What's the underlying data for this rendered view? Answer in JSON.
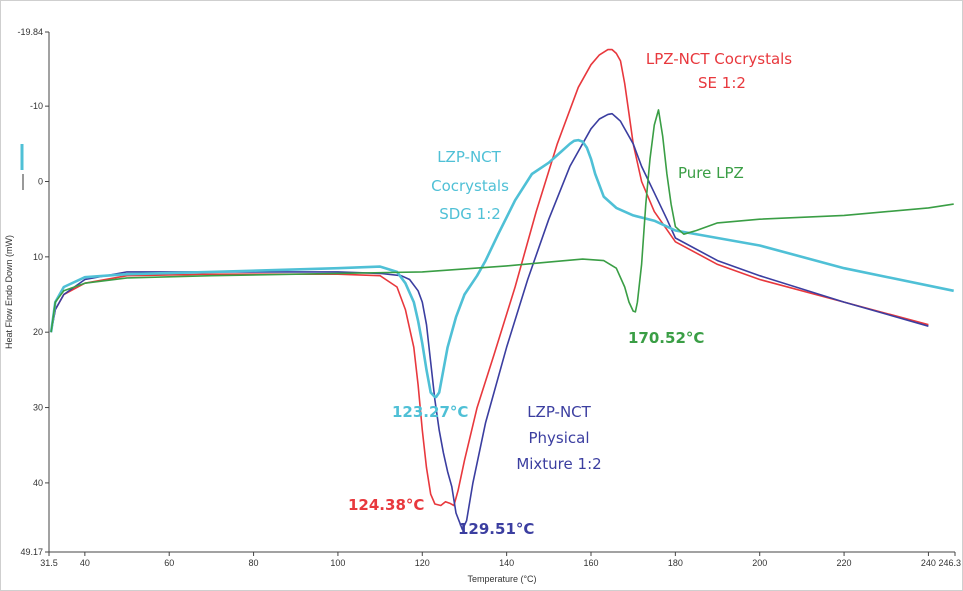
{
  "chart_data": {
    "type": "line",
    "xlabel": "Temperature (°C)",
    "ylabel": "Heat Flow Endo Down (mW)",
    "xlim": [
      31.5,
      246.3
    ],
    "ylim": [
      -19.84,
      49.17
    ],
    "y_inverted": true,
    "grid": false,
    "x_ticks": [
      "31.5",
      "40",
      "60",
      "80",
      "100",
      "120",
      "140",
      "160",
      "180",
      "200",
      "220",
      "240",
      "246.3"
    ],
    "y_ticks": [
      "-19.84",
      "-10",
      "0",
      "10",
      "20",
      "30",
      "40",
      "49.17"
    ],
    "series": [
      {
        "name": "LPZ-NCT Cocrystals SE 1:2",
        "color": "#e8383d",
        "x": [
          32,
          33,
          35,
          40,
          50,
          70,
          100,
          110,
          114,
          116,
          118,
          119,
          120,
          121,
          122,
          123,
          124.38,
          125.5,
          126.5,
          127.5,
          128.5,
          130,
          133,
          137,
          142,
          147,
          152,
          157,
          160,
          162,
          164,
          165,
          166,
          167,
          168,
          169,
          170,
          172,
          175,
          180,
          190,
          200,
          220,
          240
        ],
        "y": [
          20,
          17,
          15,
          13.5,
          12.5,
          12.3,
          12.3,
          12.5,
          14,
          17,
          22,
          27,
          33,
          38,
          41.5,
          42.8,
          43,
          42.5,
          42.7,
          43,
          41,
          37,
          30,
          23,
          14,
          4,
          -5,
          -12.5,
          -15.5,
          -16.8,
          -17.5,
          -17.5,
          -17,
          -16,
          -13,
          -9,
          -5,
          0,
          4,
          8,
          11,
          13,
          16,
          19
        ]
      },
      {
        "name": "LZP-NCT Physical Mixture 1:2",
        "color": "#3b3ea0",
        "x": [
          32,
          33,
          35,
          40,
          50,
          70,
          100,
          110,
          115,
          117,
          119,
          120,
          121,
          122,
          123,
          124,
          125,
          126,
          127,
          128,
          129.51,
          130.5,
          132,
          135,
          140,
          145,
          150,
          155,
          160,
          162,
          164,
          165,
          166,
          167,
          168,
          170,
          172,
          175,
          178,
          180,
          190,
          200,
          220,
          240
        ],
        "y": [
          20,
          17,
          15,
          13,
          12,
          12,
          12,
          12.2,
          12.5,
          13,
          14.5,
          16,
          19,
          24,
          29,
          33,
          36,
          38.5,
          40.5,
          44,
          46.2,
          45,
          40,
          32,
          22,
          13,
          5,
          -2,
          -7,
          -8.3,
          -8.9,
          -9,
          -8.5,
          -8,
          -7,
          -5,
          -2,
          1.5,
          5,
          7.5,
          10.5,
          12.5,
          16,
          19.2
        ]
      },
      {
        "name": "LZP-NCT Cocrystals SDG 1:2",
        "color": "#4fc0d6",
        "x": [
          32,
          33,
          35,
          40,
          50,
          70,
          100,
          110,
          114,
          116,
          118,
          119,
          120,
          121,
          122,
          123,
          123.27,
          124,
          125,
          126,
          128,
          130,
          133,
          135,
          138,
          142,
          146,
          150,
          153,
          155,
          156,
          157,
          158,
          159,
          160,
          161,
          163,
          166,
          170,
          175,
          180,
          200,
          220,
          246
        ],
        "y": [
          20,
          16,
          14,
          12.7,
          12.3,
          12,
          11.5,
          11.3,
          12,
          13.5,
          16,
          18.5,
          21.5,
          25,
          28,
          28.6,
          28.6,
          28,
          25,
          22,
          18,
          15,
          12.5,
          10.5,
          7,
          2.5,
          -1,
          -2.5,
          -4,
          -5,
          -5.4,
          -5.5,
          -5.3,
          -4.5,
          -3,
          -1,
          2,
          3.5,
          4.5,
          5.2,
          6.5,
          8.5,
          11.5,
          14.5
        ]
      },
      {
        "name": "Pure LPZ",
        "color": "#3a9e45",
        "x": [
          32,
          33,
          35,
          40,
          50,
          70,
          100,
          120,
          140,
          150,
          158,
          163,
          166,
          168,
          169,
          170,
          170.52,
          171,
          172,
          173,
          174,
          175,
          176,
          177,
          178,
          179,
          180,
          182,
          185,
          190,
          200,
          220,
          240,
          246
        ],
        "y": [
          20,
          16,
          14.5,
          13.5,
          12.8,
          12.5,
          12.2,
          12,
          11.2,
          10.7,
          10.3,
          10.5,
          11.5,
          14,
          16,
          17.2,
          17.3,
          16,
          11,
          3,
          -3,
          -7.5,
          -9.5,
          -6,
          -1,
          3,
          6,
          7,
          6.5,
          5.5,
          5,
          4.5,
          3.5,
          3
        ]
      }
    ],
    "annotations": [
      {
        "text": "LPZ-NCT Cocrystals",
        "color": "#e8383d"
      },
      {
        "text": "SE 1:2",
        "color": "#e8383d"
      },
      {
        "text": "Pure LPZ",
        "color": "#3a9e45"
      },
      {
        "text": "LZP-NCT",
        "color": "#4fc0d6"
      },
      {
        "text": "Cocrystals",
        "color": "#4fc0d6"
      },
      {
        "text": "SDG 1:2",
        "color": "#4fc0d6"
      },
      {
        "text": "170.52°C",
        "color": "#3a9e45"
      },
      {
        "text": "123.27°C",
        "color": "#4fc0d6"
      },
      {
        "text": "LZP-NCT",
        "color": "#3b3ea0"
      },
      {
        "text": "Physical",
        "color": "#3b3ea0"
      },
      {
        "text": "Mixture 1:2",
        "color": "#3b3ea0"
      },
      {
        "text": "124.38°C",
        "color": "#e8383d"
      },
      {
        "text": "129.51°C",
        "color": "#3b3ea0"
      }
    ]
  }
}
